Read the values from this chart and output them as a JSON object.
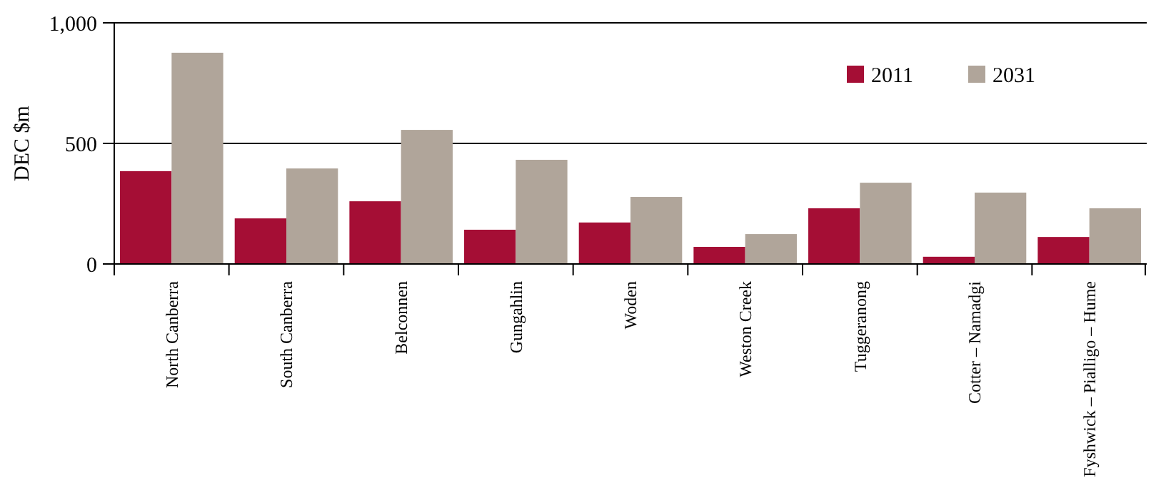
{
  "chart_data": {
    "type": "bar",
    "ylabel": "DEC $m",
    "categories": [
      "North Canberra",
      "South Canberra",
      "Belconnen",
      "Gungahlin",
      "Woden",
      "Weston Creek",
      "Tuggeranong",
      "Cotter – Namadgi",
      "Fyshwick – Pialligo – Hume"
    ],
    "series": [
      {
        "name": "2011",
        "color": "#a50e35",
        "values": [
          385,
          189,
          260,
          142,
          172,
          71,
          231,
          30,
          112
        ]
      },
      {
        "name": "2031",
        "color": "#b0a59a",
        "values": [
          876,
          396,
          556,
          432,
          278,
          124,
          337,
          296,
          231
        ]
      }
    ],
    "ylim": [
      0,
      1000
    ],
    "yticks": [
      0,
      500,
      {
        "value": 1000,
        "label": "1,000"
      }
    ],
    "grid": "y",
    "legend": "top right"
  }
}
